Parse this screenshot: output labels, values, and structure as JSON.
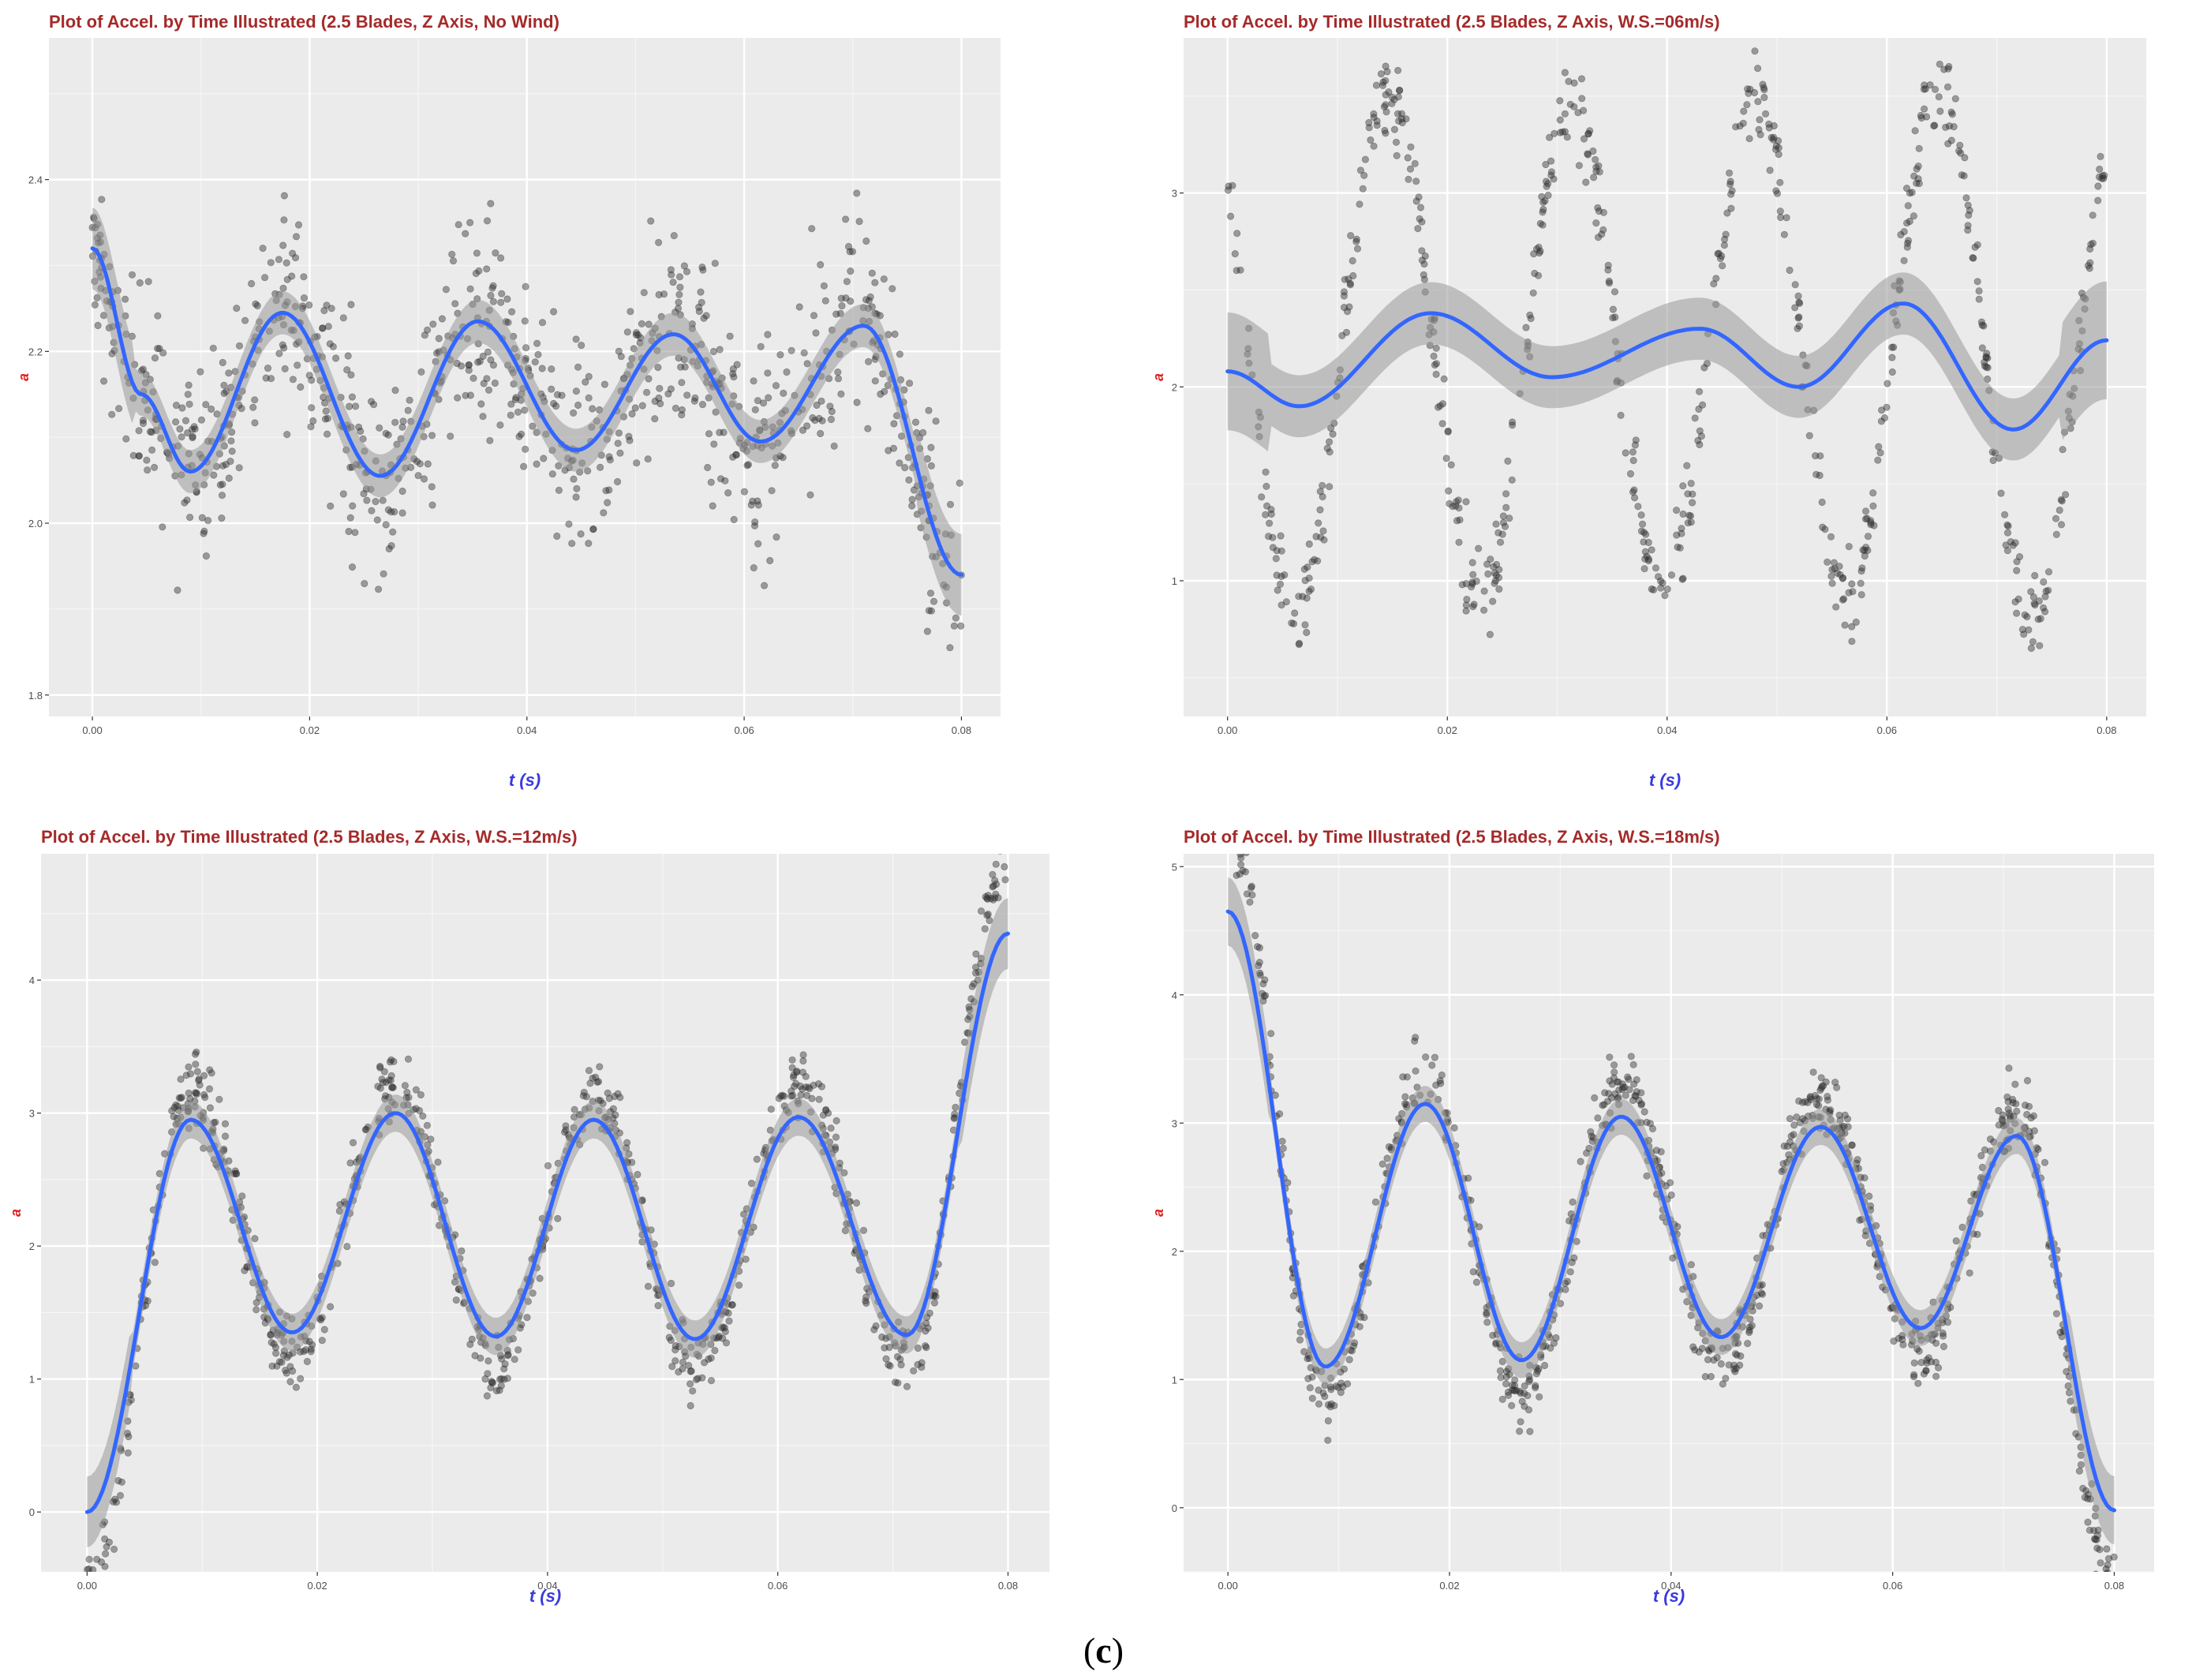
{
  "figure_caption": {
    "open": "(",
    "letter": "c",
    "close": ")"
  },
  "colors": {
    "panel_bg": "#ebebeb",
    "grid_major": "#ffffff",
    "points": "#333333",
    "smooth_line": "#3366ff",
    "ribbon": "#999999",
    "title": "#a52a2a",
    "xlabel": "#3a3adf",
    "ylabel": "#e02020"
  },
  "chart_data": [
    {
      "type": "scatter",
      "title": "Plot of Accel. by Time Illustrated (2.5 Blades, Z Axis, No Wind)",
      "xlabel": "t (s)",
      "ylabel": "a",
      "xlim": [
        -0.004,
        0.0836
      ],
      "ylim": [
        1.775,
        2.565
      ],
      "x_ticks": [
        0.0,
        0.02,
        0.04,
        0.06,
        0.08
      ],
      "x_tick_labels": [
        "0.00",
        "0.02",
        "0.04",
        "0.06",
        "0.08"
      ],
      "y_ticks": [
        1.8,
        2.0,
        2.2,
        2.4
      ],
      "y_tick_labels": [
        "1.8",
        "2.0",
        "2.2",
        "2.4"
      ],
      "grid": true,
      "series": [
        {
          "name": "loess smooth",
          "type": "smooth",
          "knots_x": [
            0.0,
            0.0045,
            0.009,
            0.0175,
            0.0265,
            0.0355,
            0.0445,
            0.0535,
            0.0615,
            0.071,
            0.08
          ],
          "knots_y": [
            2.32,
            2.15,
            2.06,
            2.245,
            2.055,
            2.235,
            2.085,
            2.22,
            2.095,
            2.23,
            1.94
          ],
          "band": 0.025,
          "scatter": {
            "count": 900,
            "spread": 0.11
          }
        }
      ]
    },
    {
      "type": "scatter",
      "title": "Plot of Accel. by Time Illustrated (2.5 Blades, Z Axis, W.S.=06m/s)",
      "xlabel": "t (s)",
      "ylabel": "a",
      "xlim": [
        -0.004,
        0.0836
      ],
      "ylim": [
        0.3,
        3.8
      ],
      "x_ticks": [
        0.0,
        0.02,
        0.04,
        0.06,
        0.08
      ],
      "x_tick_labels": [
        "0.00",
        "0.02",
        "0.04",
        "0.06",
        "0.08"
      ],
      "y_ticks": [
        1,
        2,
        3
      ],
      "y_tick_labels": [
        "1",
        "2",
        "3"
      ],
      "grid": true,
      "series": [
        {
          "name": "loess smooth",
          "type": "smooth",
          "knots_x": [
            0.0,
            0.0065,
            0.0185,
            0.0295,
            0.043,
            0.052,
            0.0615,
            0.0715,
            0.08
          ],
          "knots_y": [
            2.08,
            1.9,
            2.38,
            2.05,
            2.3,
            2.0,
            2.43,
            1.78,
            2.24
          ],
          "band": 0.16,
          "scatter": {
            "count": 700,
            "amplitude": 1.35,
            "period": 0.0168,
            "phase_zero": 0.0145,
            "spread": 0.22
          }
        }
      ]
    },
    {
      "type": "scatter",
      "title": "Plot of Accel. by Time Illustrated (2.5 Blades, Z Axis, W.S.=12m/s)",
      "xlabel": "t (s)",
      "ylabel": "a",
      "xlim": [
        -0.004,
        0.0836
      ],
      "ylim": [
        -0.45,
        4.95
      ],
      "x_ticks": [
        0.0,
        0.02,
        0.04,
        0.06,
        0.08
      ],
      "x_tick_labels": [
        "0.00",
        "0.02",
        "0.04",
        "0.06",
        "0.08"
      ],
      "y_ticks": [
        0,
        1,
        2,
        3,
        4
      ],
      "y_tick_labels": [
        "0",
        "1",
        "2",
        "3",
        "4"
      ],
      "grid": true,
      "series": [
        {
          "name": "loess smooth",
          "type": "smooth",
          "knots_x": [
            0.0,
            0.009,
            0.0178,
            0.0268,
            0.0355,
            0.044,
            0.0528,
            0.0618,
            0.0712,
            0.08
          ],
          "knots_y": [
            0.0,
            2.95,
            1.35,
            3.0,
            1.32,
            2.95,
            1.3,
            2.97,
            1.33,
            4.35
          ],
          "band": 0.14,
          "scatter": {
            "count": 850,
            "amplitude": 1.45,
            "spread": 0.26
          }
        }
      ]
    },
    {
      "type": "scatter",
      "title": "Plot of Accel. by Time Illustrated (2.5 Blades, Z Axis, W.S.=18m/s)",
      "xlabel": "t (s)",
      "ylabel": "a",
      "xlim": [
        -0.004,
        0.0836
      ],
      "ylim": [
        -0.5,
        5.1
      ],
      "x_ticks": [
        0.0,
        0.02,
        0.04,
        0.06,
        0.08
      ],
      "x_tick_labels": [
        "0.00",
        "0.02",
        "0.04",
        "0.06",
        "0.08"
      ],
      "y_ticks": [
        0,
        1,
        2,
        3,
        4,
        5
      ],
      "y_tick_labels": [
        "0",
        "1",
        "2",
        "3",
        "4",
        "5"
      ],
      "grid": true,
      "series": [
        {
          "name": "loess smooth",
          "type": "smooth",
          "knots_x": [
            0.0,
            0.0088,
            0.0178,
            0.0265,
            0.0355,
            0.0445,
            0.0535,
            0.0625,
            0.0712,
            0.08
          ],
          "knots_y": [
            4.65,
            1.1,
            3.15,
            1.15,
            3.05,
            1.33,
            2.97,
            1.4,
            2.9,
            -0.02
          ],
          "band": 0.14,
          "scatter": {
            "count": 850,
            "amplitude": 1.45,
            "spread": 0.26
          }
        }
      ]
    }
  ]
}
